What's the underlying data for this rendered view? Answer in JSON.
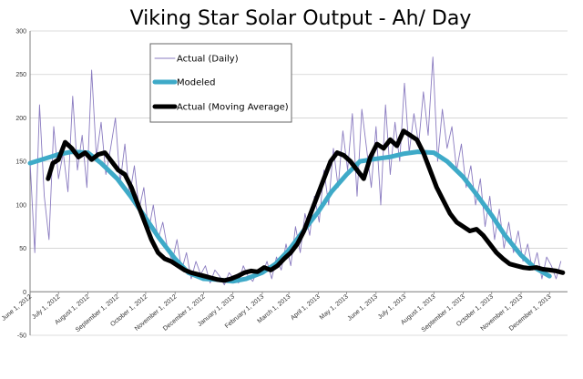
{
  "chart_data": {
    "type": "line",
    "title": "Viking Star Solar Output -  Ah/ Day",
    "xlabel": "",
    "ylabel": "",
    "ylim": [
      -50,
      300
    ],
    "y_ticks": [
      "-50",
      "0",
      "50",
      "100",
      "150",
      "200",
      "250",
      "300"
    ],
    "grid": "horizontal",
    "legend_position": "upper-left inside plot",
    "x_tick_labels": [
      "June 1, 2012",
      "July 1, 2012",
      "August 1, 2012",
      "September 1, 2012",
      "October 1, 2012",
      "November 1, 2012",
      "December 1, 2012",
      "January 1, 2013",
      "February 1, 2013",
      "March 1, 2013",
      "April 1, 2013",
      "May 1, 2013",
      "June 1, 2013",
      "July 1, 2013",
      "August 1, 2013",
      "September 1, 2013",
      "October 1, 2013",
      "November 1, 2013",
      "December 1, 2013"
    ],
    "series": [
      {
        "name": "Actual (Daily)",
        "color": "#8a7bc0",
        "style": "thin",
        "x": [
          "2012-06-01",
          "2012-06-06",
          "2012-06-11",
          "2012-06-16",
          "2012-06-21",
          "2012-06-26",
          "2012-07-01",
          "2012-07-06",
          "2012-07-11",
          "2012-07-16",
          "2012-07-21",
          "2012-07-26",
          "2012-07-31",
          "2012-08-05",
          "2012-08-10",
          "2012-08-15",
          "2012-08-20",
          "2012-08-25",
          "2012-08-30",
          "2012-09-04",
          "2012-09-09",
          "2012-09-14",
          "2012-09-19",
          "2012-09-24",
          "2012-09-29",
          "2012-10-04",
          "2012-10-09",
          "2012-10-14",
          "2012-10-19",
          "2012-10-24",
          "2012-10-29",
          "2012-11-03",
          "2012-11-08",
          "2012-11-13",
          "2012-11-18",
          "2012-11-23",
          "2012-11-28",
          "2012-12-03",
          "2012-12-08",
          "2012-12-13",
          "2012-12-18",
          "2012-12-23",
          "2012-12-28",
          "2013-01-02",
          "2013-01-07",
          "2013-01-12",
          "2013-01-17",
          "2013-01-22",
          "2013-01-27",
          "2013-02-01",
          "2013-02-06",
          "2013-02-11",
          "2013-02-16",
          "2013-02-21",
          "2013-02-26",
          "2013-03-03",
          "2013-03-08",
          "2013-03-13",
          "2013-03-18",
          "2013-03-23",
          "2013-03-28",
          "2013-04-02",
          "2013-04-07",
          "2013-04-12",
          "2013-04-17",
          "2013-04-22",
          "2013-04-27",
          "2013-05-02",
          "2013-05-07",
          "2013-05-12",
          "2013-05-17",
          "2013-05-22",
          "2013-05-27",
          "2013-06-01",
          "2013-06-06",
          "2013-06-11",
          "2013-06-16",
          "2013-06-21",
          "2013-06-26",
          "2013-07-01",
          "2013-07-06",
          "2013-07-11",
          "2013-07-16",
          "2013-07-21",
          "2013-07-26",
          "2013-07-31",
          "2013-08-05",
          "2013-08-10",
          "2013-08-15",
          "2013-08-20",
          "2013-08-25",
          "2013-08-30",
          "2013-09-04",
          "2013-09-09",
          "2013-09-14",
          "2013-09-19",
          "2013-09-24",
          "2013-09-29",
          "2013-10-04",
          "2013-10-09",
          "2013-10-14",
          "2013-10-19",
          "2013-10-24",
          "2013-10-29",
          "2013-11-03",
          "2013-11-08",
          "2013-11-13",
          "2013-11-18",
          "2013-11-23",
          "2013-11-28",
          "2013-12-03",
          "2013-12-08",
          "2013-12-13"
        ],
        "values": [
          150,
          45,
          215,
          110,
          60,
          190,
          130,
          160,
          115,
          225,
          140,
          180,
          120,
          255,
          155,
          195,
          135,
          165,
          200,
          125,
          170,
          110,
          145,
          95,
          120,
          70,
          100,
          60,
          80,
          50,
          35,
          60,
          25,
          45,
          15,
          35,
          20,
          30,
          10,
          25,
          18,
          8,
          22,
          15,
          10,
          30,
          18,
          12,
          25,
          20,
          35,
          15,
          40,
          25,
          55,
          30,
          75,
          45,
          90,
          65,
          110,
          80,
          140,
          100,
          165,
          120,
          185,
          140,
          205,
          110,
          210,
          165,
          120,
          190,
          100,
          215,
          135,
          195,
          150,
          240,
          160,
          205,
          170,
          230,
          180,
          270,
          150,
          210,
          165,
          190,
          140,
          170,
          120,
          145,
          100,
          130,
          75,
          110,
          60,
          95,
          50,
          80,
          45,
          70,
          35,
          55,
          25,
          45,
          15,
          40,
          30,
          15,
          35
        ]
      },
      {
        "name": "Modeled",
        "color": "#3eaac8",
        "style": "thick",
        "x": [
          "2012-06-01",
          "2012-07-01",
          "2012-07-15",
          "2012-08-01",
          "2012-08-15",
          "2012-09-01",
          "2012-09-15",
          "2012-10-01",
          "2012-10-15",
          "2012-11-01",
          "2012-11-15",
          "2012-12-01",
          "2012-12-15",
          "2013-01-01",
          "2013-01-15",
          "2013-02-01",
          "2013-02-15",
          "2013-03-01",
          "2013-03-15",
          "2013-04-01",
          "2013-04-15",
          "2013-05-01",
          "2013-05-15",
          "2013-06-01",
          "2013-06-15",
          "2013-07-01",
          "2013-07-15",
          "2013-08-01",
          "2013-08-15",
          "2013-09-01",
          "2013-09-15",
          "2013-10-01",
          "2013-10-15",
          "2013-11-01",
          "2013-11-15",
          "2013-12-01"
        ],
        "values": [
          148,
          158,
          161,
          160,
          148,
          130,
          110,
          85,
          62,
          38,
          22,
          15,
          14,
          12,
          15,
          22,
          32,
          48,
          68,
          92,
          115,
          135,
          150,
          153,
          155,
          159,
          161,
          160,
          150,
          132,
          112,
          88,
          65,
          42,
          28,
          18
        ]
      },
      {
        "name": "Actual (Moving Average)",
        "color": "#000000",
        "style": "thickest",
        "x": [
          "2012-06-20",
          "2012-06-25",
          "2012-07-01",
          "2012-07-08",
          "2012-07-15",
          "2012-07-22",
          "2012-07-29",
          "2012-08-05",
          "2012-08-12",
          "2012-08-19",
          "2012-08-26",
          "2012-09-02",
          "2012-09-09",
          "2012-09-16",
          "2012-09-23",
          "2012-09-30",
          "2012-10-07",
          "2012-10-14",
          "2012-10-21",
          "2012-10-28",
          "2012-11-04",
          "2012-11-11",
          "2012-11-18",
          "2012-11-25",
          "2012-12-02",
          "2012-12-09",
          "2012-12-16",
          "2012-12-23",
          "2012-12-30",
          "2013-01-06",
          "2013-01-13",
          "2013-01-20",
          "2013-01-27",
          "2013-02-03",
          "2013-02-10",
          "2013-02-17",
          "2013-02-24",
          "2013-03-03",
          "2013-03-10",
          "2013-03-17",
          "2013-03-24",
          "2013-03-31",
          "2013-04-07",
          "2013-04-14",
          "2013-04-21",
          "2013-04-28",
          "2013-05-05",
          "2013-05-12",
          "2013-05-19",
          "2013-05-26",
          "2013-06-02",
          "2013-06-09",
          "2013-06-16",
          "2013-06-23",
          "2013-06-30",
          "2013-07-07",
          "2013-07-14",
          "2013-07-21",
          "2013-07-28",
          "2013-08-04",
          "2013-08-11",
          "2013-08-18",
          "2013-08-25",
          "2013-09-01",
          "2013-09-08",
          "2013-09-15",
          "2013-09-22",
          "2013-09-29",
          "2013-10-06",
          "2013-10-13",
          "2013-10-20",
          "2013-10-27",
          "2013-11-03",
          "2013-11-10",
          "2013-11-17",
          "2013-11-24",
          "2013-12-01",
          "2013-12-08",
          "2013-12-15"
        ],
        "values": [
          130,
          148,
          152,
          172,
          165,
          155,
          160,
          152,
          158,
          160,
          150,
          140,
          135,
          120,
          100,
          80,
          60,
          45,
          38,
          35,
          30,
          25,
          22,
          20,
          18,
          16,
          14,
          13,
          15,
          18,
          22,
          24,
          23,
          28,
          25,
          30,
          38,
          45,
          55,
          70,
          90,
          110,
          130,
          150,
          160,
          157,
          150,
          140,
          130,
          155,
          170,
          165,
          175,
          168,
          185,
          180,
          175,
          160,
          140,
          120,
          105,
          90,
          80,
          75,
          70,
          72,
          65,
          55,
          45,
          38,
          32,
          30,
          28,
          27,
          28,
          26,
          25,
          24,
          22
        ]
      }
    ]
  }
}
